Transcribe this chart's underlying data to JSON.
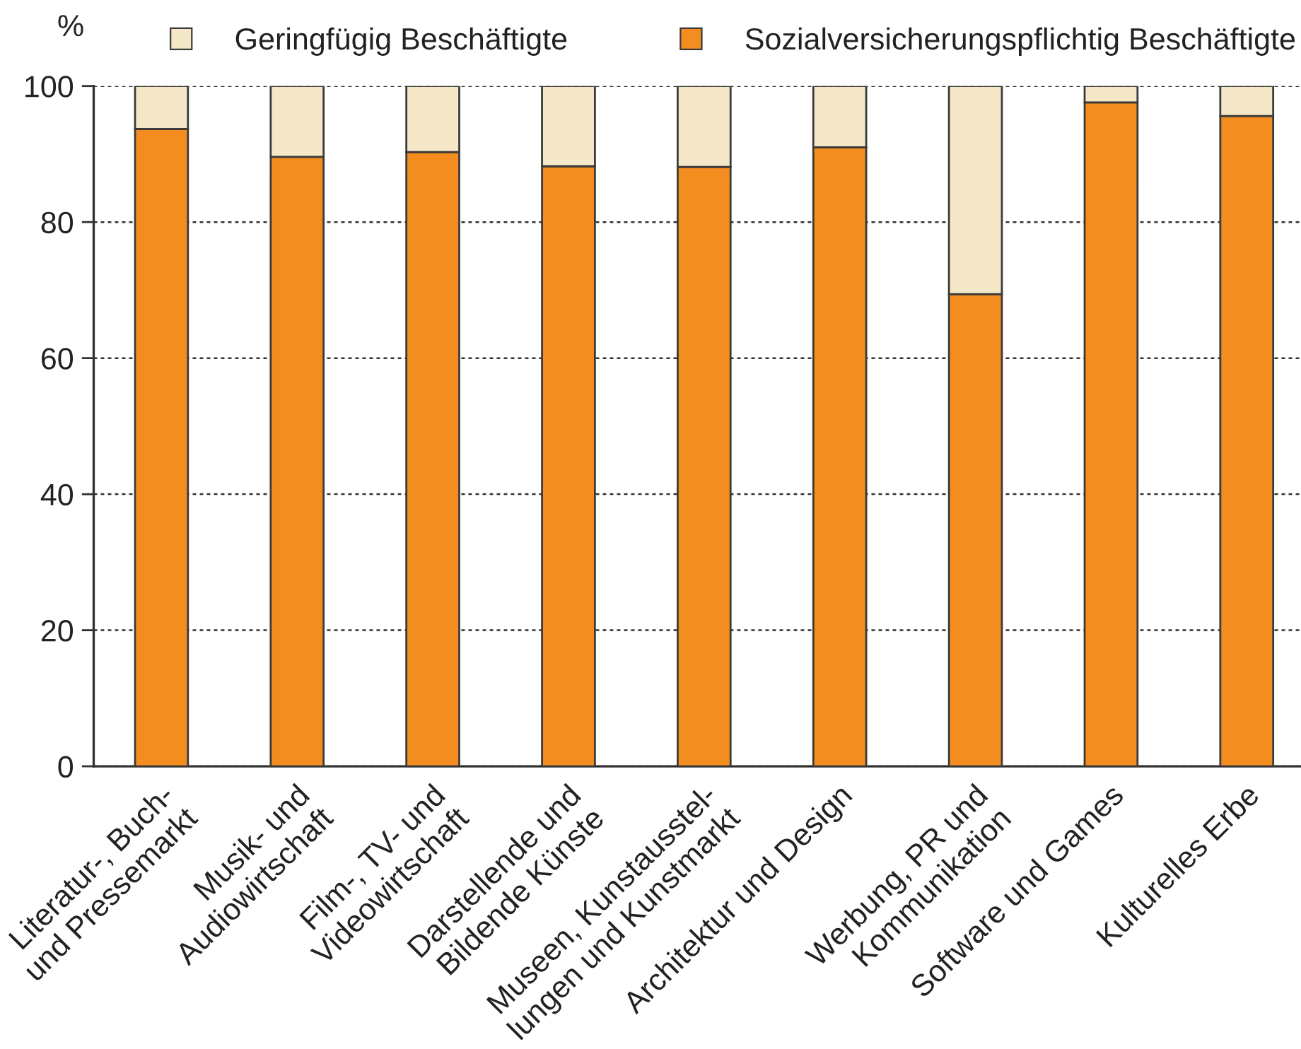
{
  "chart_data": {
    "type": "bar",
    "stacked": true,
    "ylabel": "%",
    "categories": [
      "Literatur-, Buch-\nund Pressemarkt",
      "Musik- und\nAudiowirtschaft",
      "Film-, TV- und\nVideowirtschaft",
      "Darstellende und\nBildende Künste",
      "Museen, Kunstausstel-\nlungen und Kunstmarkt",
      "Architektur und Design",
      "Werbung, PR und\nKommunikation",
      "Software und Games",
      "Kulturelles Erbe"
    ],
    "series": [
      {
        "name": "Sozialversicherungspflichtig Beschäftigte",
        "color": "#f48d1f",
        "values": [
          93.7,
          89.6,
          90.3,
          88.2,
          88.1,
          91.0,
          69.4,
          97.6,
          95.6
        ]
      },
      {
        "name": "Geringfügig Beschäftigte",
        "color": "#f5e8c8",
        "values": [
          6.3,
          10.4,
          9.7,
          11.8,
          11.9,
          9.0,
          30.6,
          2.4,
          4.4
        ]
      }
    ],
    "ylim": [
      0,
      100
    ],
    "yticks": [
      0,
      20,
      40,
      60,
      80,
      100
    ],
    "grid": "y",
    "legend": "top"
  }
}
